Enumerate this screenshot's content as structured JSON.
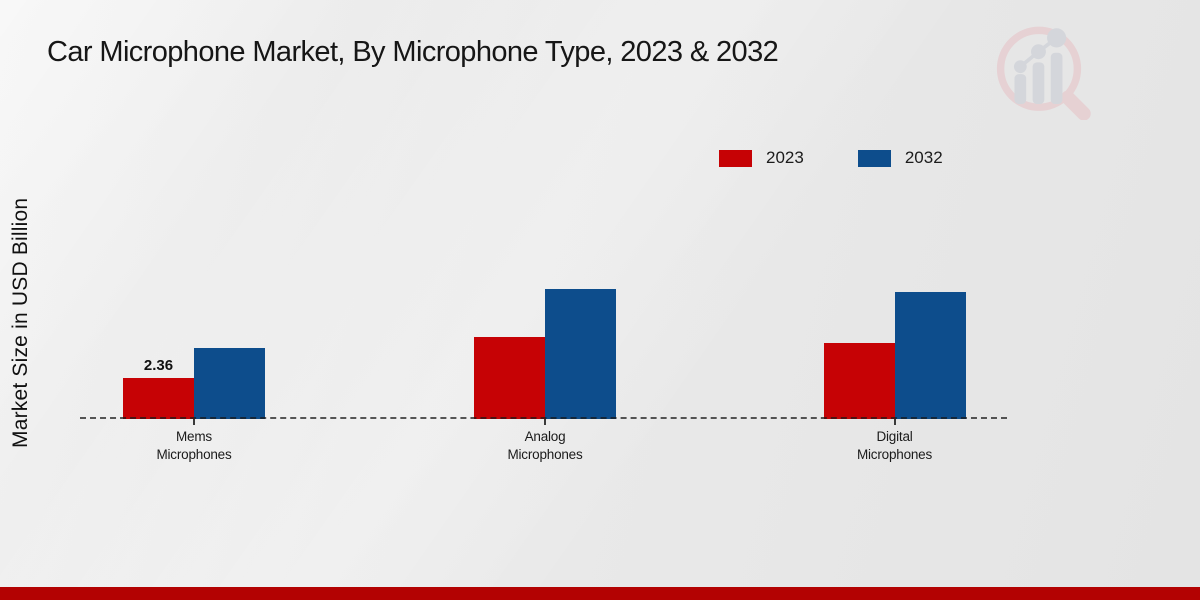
{
  "title": "Car Microphone Market, By Microphone Type, 2023 & 2032",
  "legend": {
    "items": [
      {
        "label": "2023",
        "color": "#c60205"
      },
      {
        "label": "2032",
        "color": "#0d4d8c"
      }
    ]
  },
  "watermark": {
    "name": "market-research-future-logo",
    "ring_color": "#e6c0c5",
    "bars_color": "#c6cad3"
  },
  "footer": {
    "bar_color": "#b30202"
  },
  "chart_data": {
    "type": "bar",
    "title": "Car Microphone Market, By Microphone Type, 2023 & 2032",
    "xlabel": "",
    "ylabel": "Market Size in USD Billion",
    "categories": [
      "Mems Microphones",
      "Analog Microphones",
      "Digital Microphones"
    ],
    "series": [
      {
        "name": "2023",
        "color": "#c60205",
        "values": [
          2.36,
          4.7,
          4.4
        ]
      },
      {
        "name": "2032",
        "color": "#0d4d8c",
        "values": [
          4.1,
          7.5,
          7.3
        ]
      }
    ],
    "ylim": [
      0,
      8.5
    ],
    "grid": false,
    "axis_ticks_labeled": false,
    "baseline_style": "dashed",
    "legend_position": "top-right",
    "data_labels_shown": [
      {
        "series": "2023",
        "category": "Mems Microphones",
        "value": "2.36"
      }
    ]
  }
}
